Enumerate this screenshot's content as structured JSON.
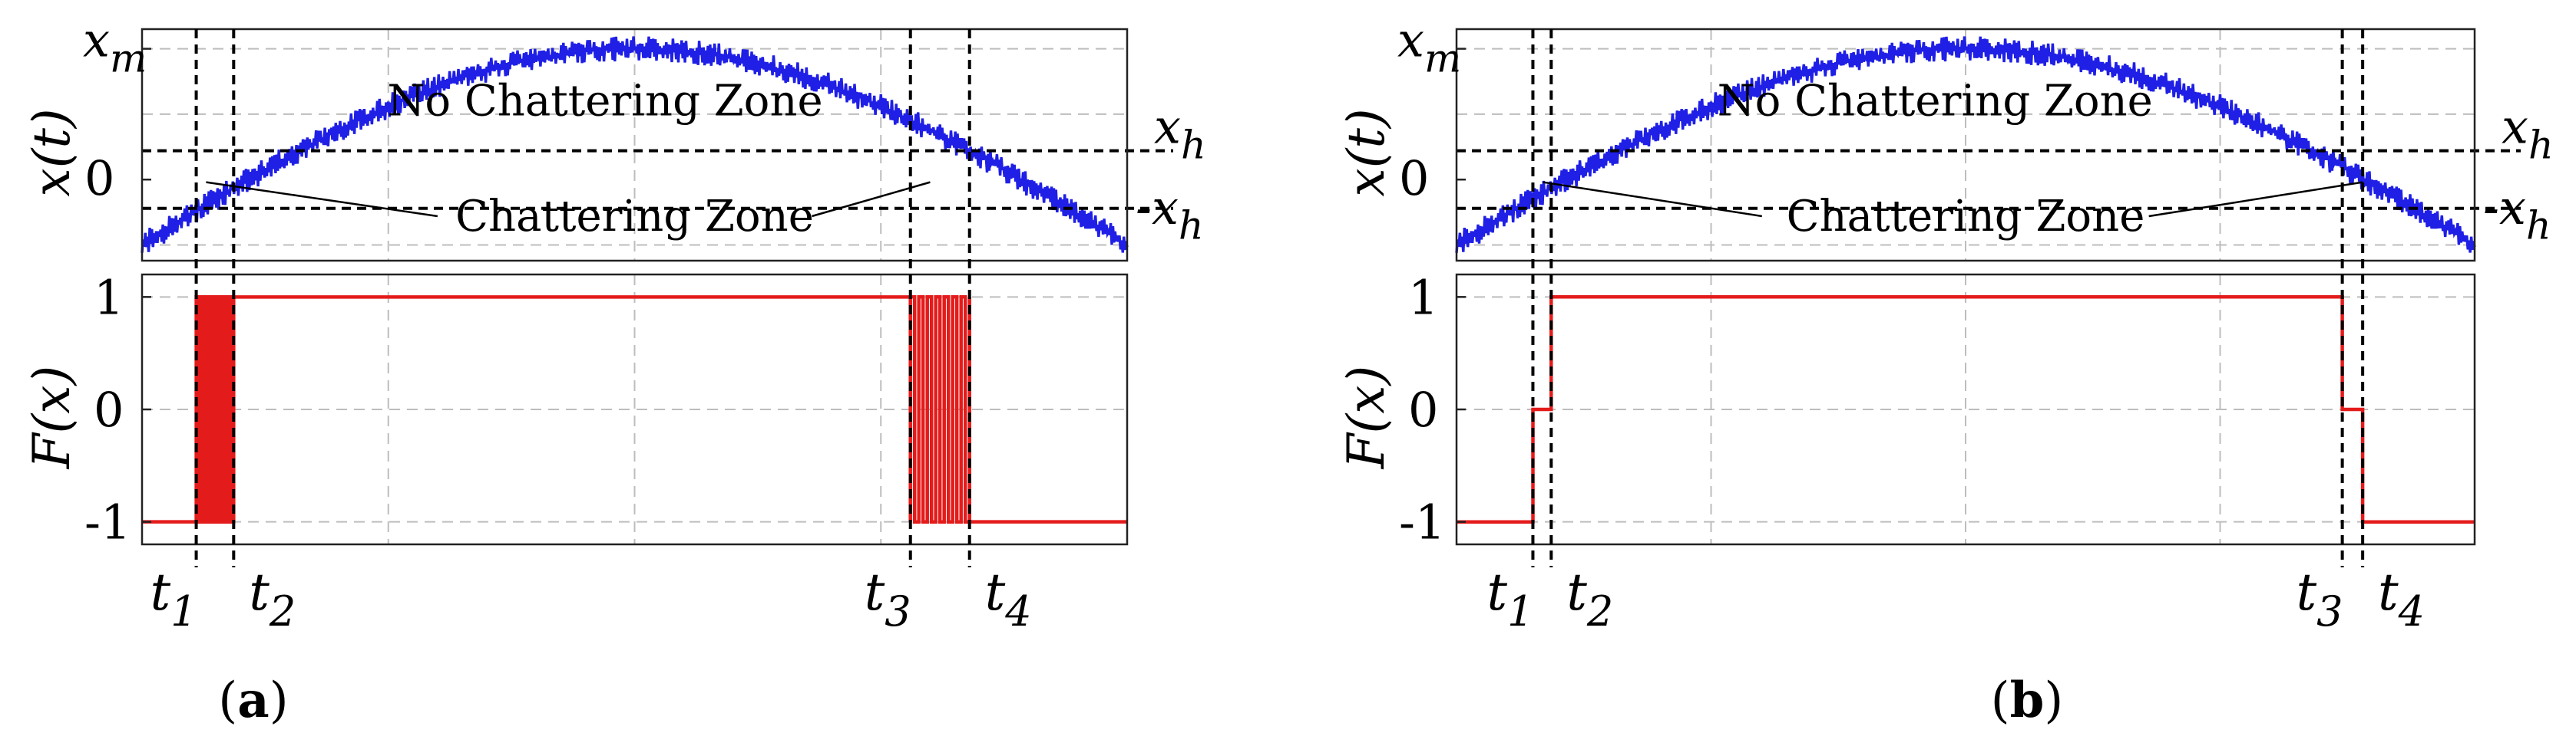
{
  "chart_data": [
    {
      "type": "line",
      "panel_label_prefix": "(",
      "panel_label": "a",
      "panel_label_suffix": ")",
      "top_plot": {
        "ylabel": "x(t)",
        "yticks": [
          {
            "main": "x",
            "sub": "m",
            "value": 1.0
          },
          {
            "main": "0",
            "sub": "",
            "value": 0.0
          }
        ],
        "right_labels": [
          {
            "main": "x",
            "sub": "h",
            "value": 0.22
          },
          {
            "main": "-x",
            "sub": "h",
            "value": -0.22
          }
        ],
        "x": [
          0.0,
          0.055,
          0.093,
          0.78,
          0.84,
          1.0
        ],
        "ylim": [
          -0.62,
          1.15
        ],
        "signal": "noisy half-sine from -0.5 up to x_m and back down",
        "zone_labels": {
          "no_chattering": "No Chattering Zone",
          "chattering": "Chattering Zone"
        }
      },
      "bottom_plot": {
        "ylabel": "F(x)",
        "yticks": [
          "1",
          "0",
          "-1"
        ],
        "yvalues": [
          1,
          0,
          -1
        ],
        "ylim": [
          -1.2,
          1.2
        ],
        "output_mode": "chattering",
        "levels": [
          {
            "from": 0.0,
            "to": 0.055,
            "value": -1
          },
          {
            "from": 0.093,
            "to": 0.78,
            "value": 1
          },
          {
            "from": 0.84,
            "to": 1.0,
            "value": -1
          }
        ]
      },
      "xticks": [
        {
          "main": "t",
          "sub": "1"
        },
        {
          "main": "t",
          "sub": "2"
        },
        {
          "main": "t",
          "sub": "3"
        },
        {
          "main": "t",
          "sub": "4"
        }
      ],
      "t_marks": [
        0.055,
        0.093,
        0.78,
        0.84
      ]
    },
    {
      "type": "line",
      "panel_label_prefix": "(",
      "panel_label": "b",
      "panel_label_suffix": ")",
      "top_plot": {
        "ylabel": "x(t)",
        "yticks": [
          {
            "main": "x",
            "sub": "m",
            "value": 1.0
          },
          {
            "main": "0",
            "sub": "",
            "value": 0.0
          }
        ],
        "right_labels": [
          {
            "main": "x",
            "sub": "h",
            "value": 0.22
          },
          {
            "main": "-x",
            "sub": "h",
            "value": -0.22
          }
        ],
        "x": [
          0.0,
          0.075,
          0.093,
          0.87,
          0.89,
          1.0
        ],
        "ylim": [
          -0.62,
          1.15
        ],
        "signal": "noisy half-sine from -0.5 up to x_m and back down",
        "zone_labels": {
          "no_chattering": "No Chattering Zone",
          "chattering": "Chattering Zone"
        }
      },
      "bottom_plot": {
        "ylabel": "F(x)",
        "yticks": [
          "1",
          "0",
          "-1"
        ],
        "yvalues": [
          1,
          0,
          -1
        ],
        "ylim": [
          -1.2,
          1.2
        ],
        "output_mode": "hysteresis",
        "levels": [
          {
            "from": 0.0,
            "to": 0.075,
            "value": -1
          },
          {
            "from": 0.075,
            "to": 0.093,
            "value": 0
          },
          {
            "from": 0.093,
            "to": 0.87,
            "value": 1
          },
          {
            "from": 0.87,
            "to": 0.89,
            "value": 0
          },
          {
            "from": 0.89,
            "to": 1.0,
            "value": -1
          }
        ]
      },
      "xticks": [
        {
          "main": "t",
          "sub": "1"
        },
        {
          "main": "t",
          "sub": "2"
        },
        {
          "main": "t",
          "sub": "3"
        },
        {
          "main": "t",
          "sub": "4"
        }
      ],
      "t_marks": [
        0.075,
        0.093,
        0.87,
        0.89
      ]
    }
  ],
  "colors": {
    "signal": "#1f1fe6",
    "output": "#e41b1b",
    "grid": "#bdbdbd",
    "guide": "#000000"
  }
}
